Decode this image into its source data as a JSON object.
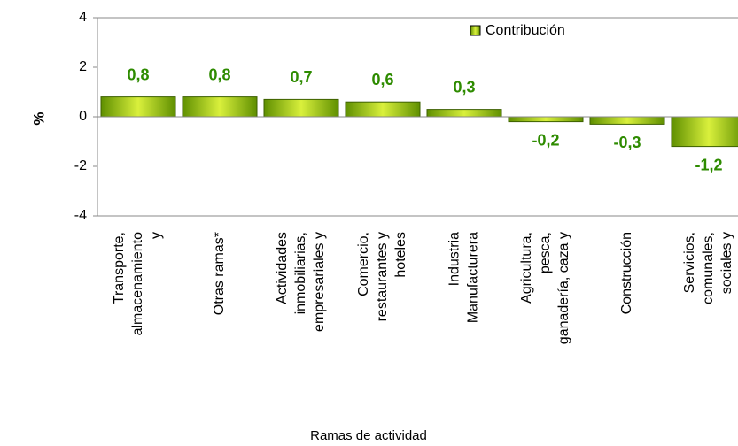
{
  "chart_data": {
    "type": "bar",
    "y_label": "%",
    "x_label": "Ramas de actividad",
    "legend": "Contribución",
    "legend_position": "top-right",
    "color": "#99cc00",
    "categories": [
      [
        "Transporte,",
        "almacenamiento",
        "y"
      ],
      [
        "Otras ramas*"
      ],
      [
        "Actividades",
        "inmobiliarias,",
        "empresariales y"
      ],
      [
        "Comercio,",
        "restaurantes y",
        "hoteles"
      ],
      [
        "Industria",
        "Manufacturera"
      ],
      [
        "Agricultura,",
        "pesca,",
        "ganadería, caza y"
      ],
      [
        "Construcción"
      ],
      [
        "Servicios,",
        "comunales,",
        "sociales y"
      ]
    ],
    "values": [
      0.8,
      0.8,
      0.7,
      0.6,
      0.3,
      -0.2,
      -0.3,
      -1.2
    ],
    "value_labels": [
      "0,8",
      "0,8",
      "0,7",
      "0,6",
      "0,3",
      "-0,2",
      "-0,3",
      "-1,2"
    ],
    "ylim": [
      -4,
      4
    ],
    "yticks": [
      -4,
      -2,
      0,
      2,
      4
    ]
  }
}
